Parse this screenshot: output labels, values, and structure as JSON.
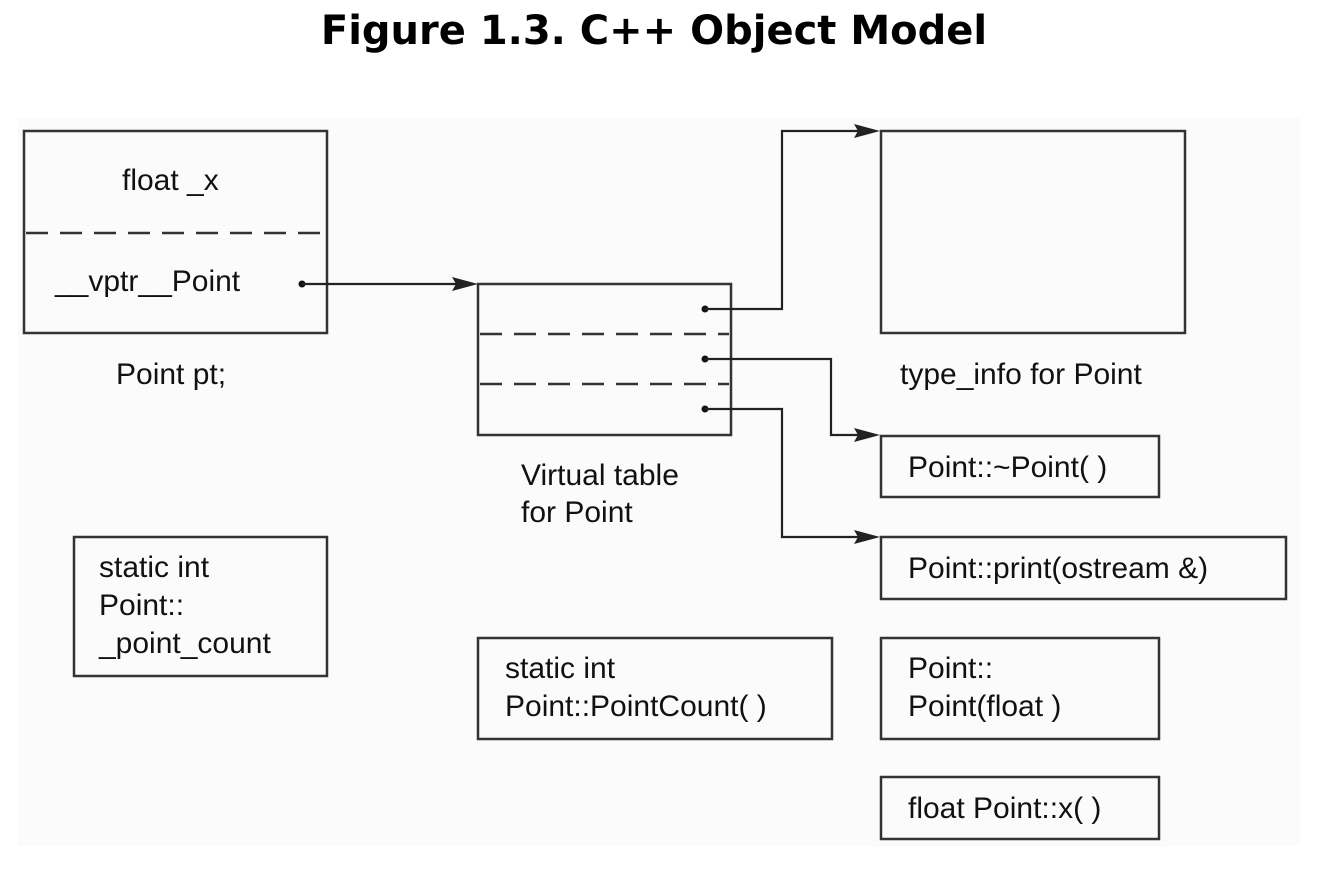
{
  "title": "Figure 1.3. C++ Object Model",
  "object": {
    "member_x": "float _x",
    "vptr": "__vptr__Point",
    "caption": "Point pt;"
  },
  "vtable": {
    "caption_line1": "Virtual table",
    "caption_line2": "for Point"
  },
  "type_info": {
    "caption": "type_info for Point"
  },
  "functions": {
    "destructor": "Point::~Point( )",
    "print": "Point::print(ostream &)",
    "ctor_line1": "Point::",
    "ctor_line2": "Point(float )",
    "accessor_x": "float Point::x( )",
    "point_count_line1": "static int",
    "point_count_line2": "Point::PointCount( )"
  },
  "static_member": {
    "line1": "static int",
    "line2": "Point::",
    "line3": "_point_count"
  },
  "colors": {
    "stroke": "#333333",
    "text": "#111111",
    "background": "#fbfbfb"
  }
}
